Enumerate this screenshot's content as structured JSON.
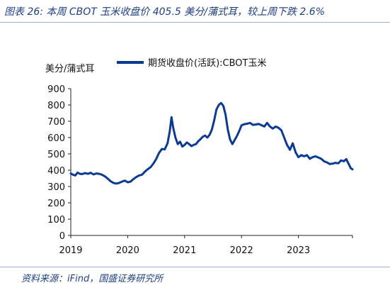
{
  "title": "图表 26:  本周 CBOT 玉米收盘价 405.5 美分/蒲式耳，较上周下跌 2.6%",
  "source": "资料来源：iFind，国盛证券研究所",
  "chart_data": {
    "type": "line",
    "ylabel": "美分/蒲式耳",
    "ylim": [
      0,
      900
    ],
    "yticks": [
      0,
      100,
      200,
      300,
      400,
      500,
      600,
      700,
      800,
      900
    ],
    "xticks": [
      "2019",
      "2020",
      "2021",
      "2022",
      "2023"
    ],
    "xlim": [
      2019.0,
      2023.95
    ],
    "grid": false,
    "legend_position": "top",
    "color": "#0b3a93",
    "series": [
      {
        "name": "期货收盘价(活跃):CBOT玉米",
        "x": [
          2019.0,
          2019.04,
          2019.08,
          2019.12,
          2019.16,
          2019.2,
          2019.25,
          2019.3,
          2019.35,
          2019.4,
          2019.45,
          2019.5,
          2019.55,
          2019.6,
          2019.65,
          2019.7,
          2019.75,
          2019.8,
          2019.85,
          2019.9,
          2019.95,
          2020.0,
          2020.05,
          2020.1,
          2020.15,
          2020.2,
          2020.25,
          2020.3,
          2020.35,
          2020.4,
          2020.45,
          2020.5,
          2020.55,
          2020.6,
          2020.65,
          2020.7,
          2020.74,
          2020.77,
          2020.8,
          2020.84,
          2020.88,
          2020.92,
          2020.96,
          2021.0,
          2021.04,
          2021.08,
          2021.12,
          2021.16,
          2021.2,
          2021.24,
          2021.28,
          2021.32,
          2021.36,
          2021.4,
          2021.44,
          2021.48,
          2021.52,
          2021.56,
          2021.6,
          2021.64,
          2021.68,
          2021.72,
          2021.76,
          2021.8,
          2021.84,
          2021.88,
          2021.92,
          2021.96,
          2022.0,
          2022.05,
          2022.1,
          2022.15,
          2022.2,
          2022.25,
          2022.3,
          2022.35,
          2022.4,
          2022.45,
          2022.5,
          2022.55,
          2022.6,
          2022.65,
          2022.7,
          2022.75,
          2022.8,
          2022.85,
          2022.9,
          2022.95,
          2023.0,
          2023.05,
          2023.1,
          2023.15,
          2023.2,
          2023.25,
          2023.3,
          2023.35,
          2023.4,
          2023.45,
          2023.5,
          2023.55,
          2023.6,
          2023.65,
          2023.7,
          2023.75,
          2023.8,
          2023.84,
          2023.88,
          2023.92,
          2023.95
        ],
        "values": [
          380,
          372,
          368,
          385,
          378,
          376,
          382,
          378,
          384,
          374,
          380,
          378,
          372,
          362,
          348,
          332,
          322,
          318,
          322,
          330,
          336,
          326,
          330,
          345,
          358,
          368,
          372,
          390,
          405,
          418,
          440,
          468,
          505,
          530,
          528,
          565,
          640,
          725,
          660,
          600,
          560,
          575,
          545,
          555,
          570,
          560,
          548,
          555,
          560,
          578,
          590,
          605,
          612,
          600,
          618,
          650,
          705,
          772,
          800,
          812,
          795,
          740,
          648,
          588,
          560,
          585,
          610,
          640,
          675,
          682,
          685,
          690,
          678,
          680,
          684,
          676,
          668,
          690,
          668,
          655,
          668,
          660,
          645,
          600,
          555,
          525,
          565,
          510,
          480,
          492,
          485,
          492,
          470,
          480,
          485,
          478,
          470,
          455,
          448,
          438,
          440,
          445,
          442,
          460,
          455,
          468,
          440,
          412,
          405
        ]
      }
    ]
  }
}
